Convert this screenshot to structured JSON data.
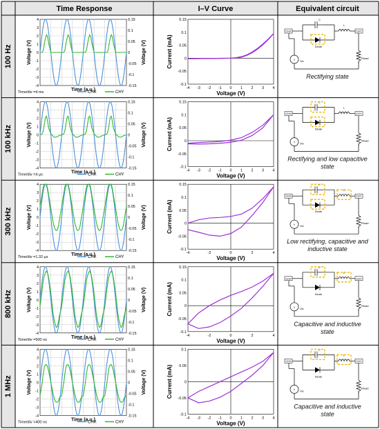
{
  "headers": {
    "time": "Time Response",
    "iv": "I–V Curve",
    "circuit": "Equivalent circuit"
  },
  "axes": {
    "time_xlabel": "Time (a.u.)",
    "time_ylabel_left": "Voltage (V)",
    "time_ylabel_right": "Voltage (V)",
    "iv_xlabel": "Voltage (V)",
    "iv_ylabel": "Current (mA)"
  },
  "legend": {
    "chx": "CHX",
    "chy": "CHY"
  },
  "circuit_labels": {
    "chx": "CHX",
    "chy": "CHY",
    "vin": "Vin",
    "c": "C",
    "l": "L",
    "diode": "Diode",
    "rload": "Rload"
  },
  "colors": {
    "chx": "#4a90d9",
    "chy": "#2eb82e",
    "iv": "#9b30d9",
    "highlight": "#e8b400"
  },
  "rows": [
    {
      "label": "100 Hz",
      "timediv": "Time/div =4 ms",
      "caption": [
        "Rectifying state"
      ],
      "highlights": [
        "diode"
      ]
    },
    {
      "label": "100 kHz",
      "timediv": "Time/div =4 μs",
      "caption": [
        "Rectifying and low capacitive",
        "state"
      ],
      "highlights": [
        "cap",
        "diode"
      ]
    },
    {
      "label": "300 kHz",
      "timediv": "Time/div =1.32 μs",
      "caption": [
        "Low rectifying, capacitive and",
        "inductive state"
      ],
      "highlights": [
        "cap",
        "diode",
        "ind"
      ]
    },
    {
      "label": "800 kHz",
      "timediv": "Time/div =500 ns",
      "caption": [
        "Capacitive and inductive",
        "state"
      ],
      "highlights": [
        "cap",
        "ind"
      ]
    },
    {
      "label": "1 MHz",
      "timediv": "Time/div =400 ns",
      "caption": [
        "Capacitive and inductive",
        "state"
      ],
      "highlights": [
        "cap",
        "ind"
      ]
    }
  ],
  "chart_data": [
    {
      "type": "line",
      "panel": "time-response",
      "x_ticks": [
        "-4",
        "-3",
        "-2",
        "-1",
        "0",
        "1",
        "2",
        "3",
        "4"
      ],
      "y_left_ticks": [
        "-4",
        "-3",
        "-2",
        "-1",
        "0",
        "1",
        "2",
        "3",
        "4"
      ],
      "y_right_ticks": [
        "-0.15",
        "-0.1",
        "-0.05",
        "0",
        "0.05",
        "0.1",
        "0.15"
      ],
      "ylim_left": [
        -4,
        4
      ],
      "ylim_right": [
        -0.15,
        0.15
      ],
      "x_range_divs": [
        -4,
        4
      ],
      "grid": true,
      "rows": [
        {
          "frequency": "100 Hz",
          "chx_amplitude": 4,
          "periods": 4,
          "chy_samples_x": [
            0,
            0.1,
            0.15,
            0.2,
            0.25,
            0.3,
            0.35,
            0.4,
            0.5,
            0.6,
            0.65,
            0.7,
            0.75,
            0.8,
            0.85,
            0.9,
            1.0
          ],
          "chy_samples_y": [
            0,
            0,
            0.01,
            0.04,
            0.065,
            0.08,
            0.07,
            0.04,
            0,
            0,
            0,
            0,
            0,
            0,
            0,
            0,
            0
          ]
        },
        {
          "frequency": "100 kHz",
          "chx_amplitude": 4,
          "periods": 4,
          "chy_samples_x": [
            0,
            0.1,
            0.15,
            0.2,
            0.25,
            0.3,
            0.35,
            0.4,
            0.5,
            0.6,
            0.65,
            0.7,
            0.75,
            0.8,
            0.85,
            0.9,
            1.0
          ],
          "chy_samples_y": [
            0.0,
            0.005,
            0.02,
            0.05,
            0.08,
            0.085,
            0.06,
            0.03,
            0.005,
            -0.005,
            -0.01,
            -0.01,
            -0.01,
            -0.008,
            -0.005,
            -0.002,
            0.0
          ]
        },
        {
          "frequency": "300 kHz",
          "chx_amplitude": 4,
          "periods": 4,
          "chy_samples_x": [
            0,
            0.1,
            0.15,
            0.2,
            0.25,
            0.3,
            0.35,
            0.4,
            0.5,
            0.6,
            0.65,
            0.7,
            0.75,
            0.8,
            0.85,
            0.9,
            1.0
          ],
          "chy_samples_y": [
            0.05,
            0.11,
            0.14,
            0.15,
            0.15,
            0.15,
            0.13,
            0.1,
            0.04,
            -0.02,
            -0.04,
            -0.055,
            -0.06,
            -0.055,
            -0.04,
            -0.01,
            0.05
          ]
        },
        {
          "frequency": "800 kHz",
          "chx_amplitude": 4,
          "periods": 4,
          "chy_samples_x": [
            0,
            0.1,
            0.15,
            0.2,
            0.25,
            0.3,
            0.35,
            0.4,
            0.5,
            0.6,
            0.65,
            0.7,
            0.75,
            0.8,
            0.85,
            0.9,
            1.0
          ],
          "chy_samples_y": [
            -0.03,
            0.05,
            0.09,
            0.11,
            0.125,
            0.13,
            0.12,
            0.1,
            0.03,
            -0.06,
            -0.09,
            -0.11,
            -0.125,
            -0.12,
            -0.1,
            -0.07,
            -0.03
          ]
        },
        {
          "frequency": "1 MHz",
          "chx_amplitude": 4,
          "periods": 4,
          "chy_samples_x": [
            0,
            0.1,
            0.15,
            0.2,
            0.25,
            0.3,
            0.35,
            0.4,
            0.5,
            0.6,
            0.65,
            0.7,
            0.75,
            0.8,
            0.85,
            0.9,
            1.0
          ],
          "chy_samples_y": [
            -0.06,
            0.0,
            0.04,
            0.07,
            0.08,
            0.08,
            0.07,
            0.05,
            0.0,
            -0.05,
            -0.07,
            -0.085,
            -0.09,
            -0.09,
            -0.085,
            -0.07,
            -0.06
          ]
        }
      ]
    },
    {
      "type": "line",
      "panel": "iv-curve",
      "xlabel": "Voltage (V)",
      "ylabel": "Current (mA)",
      "x_ticks": [
        "-4",
        "-3",
        "-2",
        "-1",
        "0",
        "1",
        "2",
        "3",
        "4"
      ],
      "xlim": [
        -4,
        4
      ],
      "grid": false,
      "rows": [
        {
          "frequency": "100 Hz",
          "ylim": [
            -0.1,
            0.15
          ],
          "y_ticks": [
            "-0.1",
            "-0.05",
            "0",
            "0.05",
            "0.1",
            "0.15"
          ],
          "x_ticks": [
            "-4",
            "-3",
            "-2",
            "-1",
            "0",
            "1",
            "2",
            "3",
            "4"
          ],
          "upper_x": [
            -4,
            -2,
            0,
            0.5,
            1,
            1.5,
            2,
            2.5,
            3,
            3.5,
            4
          ],
          "upper_y": [
            -0.002,
            -0.001,
            0,
            0.002,
            0.006,
            0.013,
            0.024,
            0.038,
            0.055,
            0.074,
            0.095
          ],
          "lower_x": [
            4,
            3.5,
            3,
            2.5,
            2,
            1.5,
            1,
            0.5,
            0,
            -2,
            -4
          ],
          "lower_y": [
            0.095,
            0.072,
            0.052,
            0.035,
            0.021,
            0.011,
            0.004,
            0.001,
            0,
            -0.001,
            -0.002
          ]
        },
        {
          "frequency": "100 kHz",
          "ylim": [
            -0.1,
            0.15
          ],
          "y_ticks": [
            "-0.1",
            "-0.05",
            "0",
            "0.05",
            "0.1",
            "0.15"
          ],
          "x_ticks": [
            "-4",
            "-3",
            "-2",
            "-1",
            "0",
            "1",
            "2",
            "3",
            "4"
          ],
          "upper_x": [
            -4,
            -3,
            -2,
            -1,
            0,
            1,
            2,
            3,
            4
          ],
          "upper_y": [
            -0.01,
            -0.007,
            -0.005,
            -0.003,
            0.002,
            0.012,
            0.032,
            0.06,
            0.1
          ],
          "lower_x": [
            4,
            3,
            2,
            1,
            0,
            -1,
            -2,
            -3,
            -4
          ],
          "lower_y": [
            0.1,
            0.05,
            0.02,
            0.002,
            -0.006,
            -0.01,
            -0.012,
            -0.013,
            -0.012
          ]
        },
        {
          "frequency": "300 kHz",
          "ylim": [
            -0.1,
            0.15
          ],
          "y_ticks": [
            "-0.1",
            "-0.05",
            "0",
            "0.05",
            "0.1",
            "0.15"
          ],
          "x_ticks": [
            "-4",
            "-2",
            "0",
            "2",
            "4"
          ],
          "upper_x": [
            -4,
            -3,
            -2,
            -1,
            0,
            1,
            2,
            3,
            4
          ],
          "upper_y": [
            0.0,
            0.013,
            0.02,
            0.022,
            0.026,
            0.035,
            0.058,
            0.095,
            0.14
          ],
          "lower_x": [
            4,
            3,
            2,
            1,
            0,
            -1,
            -2,
            -3,
            -4
          ],
          "lower_y": [
            0.14,
            0.08,
            0.03,
            -0.015,
            -0.04,
            -0.05,
            -0.046,
            -0.035,
            -0.025
          ]
        },
        {
          "frequency": "800 kHz",
          "ylim": [
            -0.1,
            0.15
          ],
          "y_ticks": [
            "-0.1",
            "-0.05",
            "0",
            "0.05",
            "0.1",
            "0.15"
          ],
          "x_ticks": [
            "-4",
            "-2",
            "0",
            "2",
            "4"
          ],
          "upper_x": [
            -4,
            -3,
            -2,
            -1,
            0,
            1,
            2,
            3,
            4
          ],
          "upper_y": [
            -0.07,
            -0.028,
            0.0,
            0.022,
            0.04,
            0.055,
            0.072,
            0.095,
            0.125
          ],
          "lower_x": [
            4,
            3,
            2,
            1,
            0,
            -1,
            -2,
            -3,
            -4
          ],
          "lower_y": [
            0.125,
            0.075,
            0.03,
            -0.01,
            -0.04,
            -0.065,
            -0.082,
            -0.088,
            -0.07
          ]
        },
        {
          "frequency": "1 MHz",
          "ylim": [
            -0.1,
            0.1
          ],
          "y_ticks": [
            "-0.1",
            "-0.05",
            "0",
            "0.05",
            "0.1"
          ],
          "x_ticks": [
            "-4",
            "-3",
            "-2",
            "-1",
            "0",
            "1",
            "2",
            "3",
            "4"
          ],
          "upper_x": [
            -4,
            -3,
            -2,
            -1,
            0,
            1,
            2,
            3,
            4
          ],
          "upper_y": [
            -0.05,
            -0.03,
            -0.015,
            0.0,
            0.015,
            0.03,
            0.045,
            0.063,
            0.09
          ],
          "lower_x": [
            4,
            3,
            2,
            1,
            0,
            -1,
            -2,
            -3,
            -4
          ],
          "lower_y": [
            0.09,
            0.05,
            0.02,
            -0.005,
            -0.03,
            -0.048,
            -0.06,
            -0.065,
            -0.05
          ]
        }
      ]
    }
  ]
}
